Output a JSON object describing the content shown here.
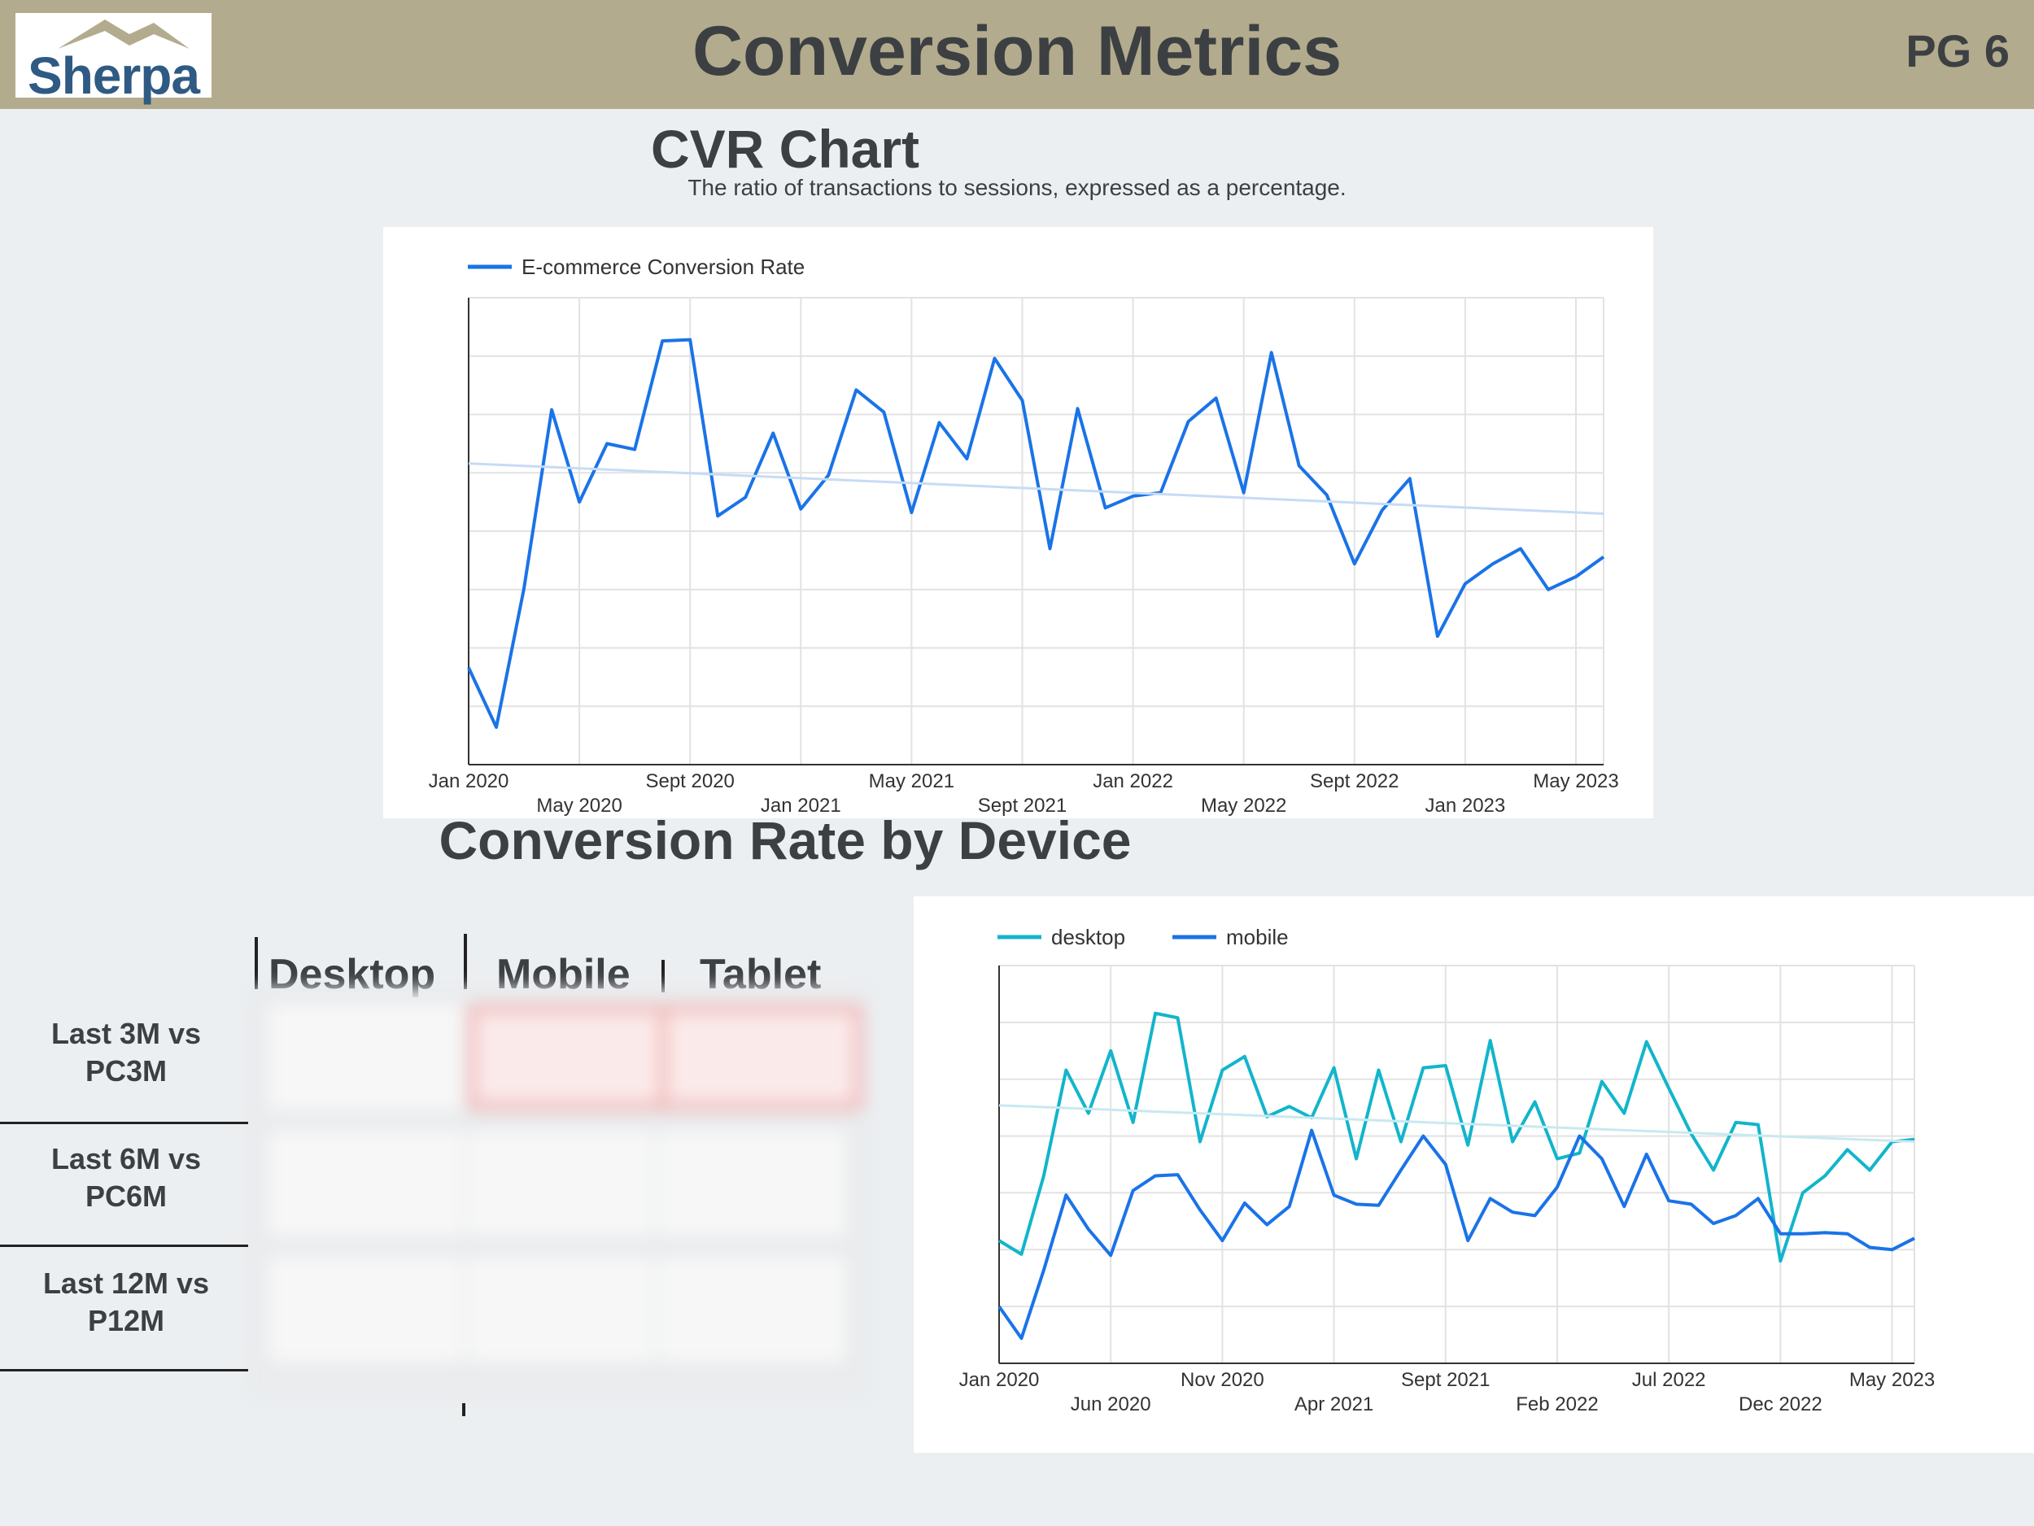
{
  "header": {
    "logo_text": "Sherpa",
    "title": "Conversion Metrics",
    "page": "PG 6"
  },
  "cvr_section": {
    "title": "CVR Chart",
    "subtitle": "The ratio of transactions to sessions, expressed as a percentage."
  },
  "device_section": {
    "title": "Conversion Rate by Device"
  },
  "device_table": {
    "columns": [
      "Desktop",
      "Mobile",
      "Tablet"
    ],
    "rows": [
      {
        "line1": "Last 3M vs",
        "line2": "PC3M"
      },
      {
        "line1": "Last 6M vs",
        "line2": "PC6M"
      },
      {
        "line1": "Last 12M vs",
        "line2": "P12M"
      }
    ]
  },
  "chart_data": [
    {
      "type": "line",
      "legend": "top-left",
      "ylim": [
        0,
        4
      ],
      "grid": true,
      "x_ticks": [
        {
          "label": "Jan 2020",
          "index": 0,
          "row": 0
        },
        {
          "label": "May 2020",
          "index": 4,
          "row": 1
        },
        {
          "label": "Sept 2020",
          "index": 8,
          "row": 0
        },
        {
          "label": "Jan 2021",
          "index": 12,
          "row": 1
        },
        {
          "label": "May 2021",
          "index": 16,
          "row": 0
        },
        {
          "label": "Sept 2021",
          "index": 20,
          "row": 1
        },
        {
          "label": "Jan 2022",
          "index": 24,
          "row": 0
        },
        {
          "label": "May 2022",
          "index": 28,
          "row": 1
        },
        {
          "label": "Sept 2022",
          "index": 32,
          "row": 0
        },
        {
          "label": "Jan 2023",
          "index": 36,
          "row": 1
        },
        {
          "label": "May 2023",
          "index": 40,
          "row": 0
        }
      ],
      "series": [
        {
          "name": "E-commerce Conversion Rate",
          "color": "#1a73e8",
          "values": [
            0.83,
            0.32,
            1.51,
            3.04,
            2.25,
            2.75,
            2.7,
            3.63,
            3.64,
            2.13,
            2.29,
            2.84,
            2.19,
            2.48,
            3.21,
            3.02,
            2.16,
            2.93,
            2.62,
            3.48,
            3.12,
            1.85,
            3.05,
            2.2,
            2.3,
            2.33,
            2.94,
            3.14,
            2.33,
            3.53,
            2.56,
            2.31,
            1.72,
            2.18,
            2.45,
            1.1,
            1.55,
            1.72,
            1.85,
            1.5,
            1.61,
            1.78
          ]
        },
        {
          "color": "#c6dcf5",
          "values": [
            2.58,
            2.15
          ]
        }
      ]
    },
    {
      "type": "line",
      "legend": "top-left",
      "ylim": [
        0,
        3.5
      ],
      "grid": true,
      "x_ticks": [
        {
          "label": "Jan 2020",
          "index": 0,
          "row": 0
        },
        {
          "label": "Jun 2020",
          "index": 5,
          "row": 1
        },
        {
          "label": "Nov 2020",
          "index": 10,
          "row": 0
        },
        {
          "label": "Apr 2021",
          "index": 15,
          "row": 1
        },
        {
          "label": "Sept 2021",
          "index": 20,
          "row": 0
        },
        {
          "label": "Feb 2022",
          "index": 25,
          "row": 1
        },
        {
          "label": "Jul 2022",
          "index": 30,
          "row": 0
        },
        {
          "label": "Dec 2022",
          "index": 35,
          "row": 1
        },
        {
          "label": "May 2023",
          "index": 40,
          "row": 0
        }
      ],
      "series": [
        {
          "name": "desktop",
          "color": "#12b5cb",
          "values": [
            1.08,
            0.96,
            1.65,
            2.58,
            2.2,
            2.75,
            2.12,
            3.08,
            3.04,
            1.95,
            2.58,
            2.7,
            2.17,
            2.26,
            2.16,
            2.6,
            1.8,
            2.58,
            1.95,
            2.6,
            2.62,
            1.92,
            2.84,
            1.95,
            2.3,
            1.8,
            1.85,
            2.48,
            2.2,
            2.83,
            2.42,
            2.02,
            1.7,
            2.12,
            2.1,
            0.9,
            1.5,
            1.65,
            1.88,
            1.7,
            1.95,
            1.97
          ]
        },
        {
          "name": "mobile",
          "color": "#1a73e8",
          "values": [
            0.5,
            0.22,
            0.82,
            1.48,
            1.18,
            0.95,
            1.52,
            1.65,
            1.66,
            1.35,
            1.08,
            1.41,
            1.22,
            1.38,
            2.05,
            1.48,
            1.4,
            1.39,
            1.7,
            2.0,
            1.75,
            1.08,
            1.45,
            1.33,
            1.3,
            1.55,
            2.0,
            1.8,
            1.38,
            1.84,
            1.43,
            1.4,
            1.23,
            1.3,
            1.45,
            1.14,
            1.14,
            1.15,
            1.14,
            1.02,
            1.0,
            1.1
          ]
        },
        {
          "color": "#c9e9ef",
          "values": [
            2.27,
            1.95
          ]
        }
      ]
    }
  ]
}
